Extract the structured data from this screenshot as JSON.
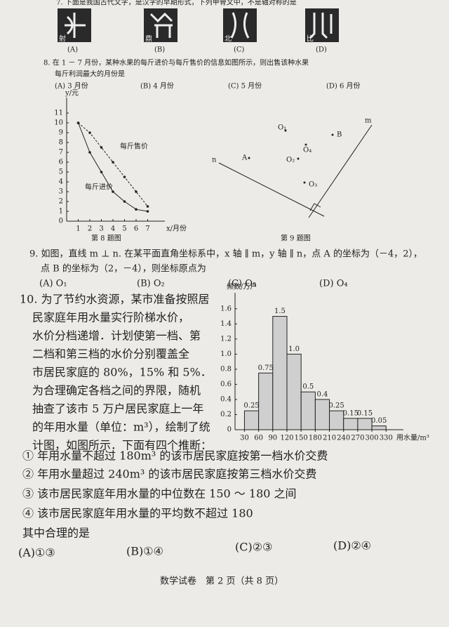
{
  "question7": {
    "text": "7. 下面是我国古代文字，是汉字的早期形式，下列甲骨文中，不是轴对称的是",
    "glyphs": [
      "射",
      "鼎",
      "北",
      "比"
    ],
    "options": [
      "(A)",
      "(B)",
      "(C)",
      "(D)"
    ]
  },
  "question8": {
    "lines": [
      "8. 在 1 － 7 月份，某种水果的每斤进价与每斤售价的信息如图所示，则出售该种水果",
      "每斤利润最大的月份是"
    ],
    "options": [
      "(A) 3 月份",
      "(B) 4 月份",
      "(C) 5 月份",
      "(D) 6 月份"
    ],
    "chart": {
      "type": "line",
      "y_label": "y/元",
      "x_label": "x/月份",
      "caption": "第 8 题图",
      "x": [
        1,
        2,
        3,
        4,
        5,
        6,
        7
      ],
      "xlim": [
        0,
        8
      ],
      "xticks": [
        1,
        2,
        3,
        4,
        5,
        6,
        7
      ],
      "ylim": [
        0,
        12
      ],
      "yticks": [
        0,
        1,
        2,
        3,
        4,
        5,
        6,
        7,
        8,
        9,
        10,
        11
      ],
      "series": [
        {
          "name": "每斤售价",
          "dashed": true,
          "values": [
            10,
            9,
            7.5,
            6,
            4.5,
            3,
            1.5
          ]
        },
        {
          "name": "每斤进价",
          "dashed": false,
          "values": [
            10,
            7,
            5,
            3,
            2,
            1.2,
            1
          ]
        }
      ]
    }
  },
  "question9": {
    "figure": {
      "labels": [
        "O₁",
        "B",
        "O₄",
        "A",
        "O₂",
        "O₃",
        "m",
        "n"
      ],
      "caption": "第 9 题图"
    },
    "lines": [
      "9. 如图，直线 m ⊥ n. 在某平面直角坐标系中，x 轴 ∥ m，y 轴 ∥ n，点 A 的坐标为（－4，2），",
      "点 B 的坐标为（2，－4），则坐标原点为"
    ],
    "options": [
      "(A) O₁",
      "(B) O₂",
      "(C) O₃",
      "(D) O₄"
    ]
  },
  "question10": {
    "lines": [
      "10. 为了节约水资源，某市准备按照居",
      "民家庭年用水量实行阶梯水价，",
      "水价分档递增．计划使第一档、第",
      "二档和第三档的水价分别覆盖全",
      "市居民家庭的 80%，15% 和 5%．",
      "为合理确定各档之间的界限，随机",
      "抽查了该市 5 万户居民家庭上一年",
      "的年用水量（单位：m³），绘制了统",
      "计图，如图所示．下面有四个推断："
    ],
    "chart": {
      "type": "histogram",
      "y_label": "频数/万户",
      "x_label": "用水量/m³",
      "bins": [
        30,
        60,
        90,
        120,
        150,
        180,
        210,
        240,
        270,
        300,
        330
      ],
      "values": [
        0.25,
        0.75,
        1.5,
        1,
        0.5,
        0.4,
        0.25,
        0.15,
        0.15,
        0.05
      ],
      "value_labels": [
        "0.25",
        "0.75",
        "1.5",
        "1.0",
        "0.5",
        "0.4",
        "0.25",
        "0.15",
        "0.15",
        "0.05"
      ],
      "xlim": [
        10,
        340
      ],
      "xticks": [
        30,
        60,
        90,
        120,
        150,
        180,
        210,
        240,
        270,
        300,
        330
      ],
      "ylim": [
        0,
        1.7
      ],
      "yticks": [
        0,
        0.2,
        0.4,
        0.6,
        0.8,
        {
          "value": 1,
          "label": "1.0"
        },
        1.2,
        1.4,
        1.6
      ]
    },
    "statements": [
      "① 年用水量不超过 180m³ 的该市居民家庭按第一档水价交费",
      "② 年用水量超过 240m³ 的该市居民家庭按第三档水价交费",
      "③ 该市居民家庭年用水量的中位数在 150 ～ 180 之间",
      "④ 该市居民家庭年用水量的平均数不超过 180"
    ],
    "prompt": "其中合理的是",
    "options": [
      "(A)①③",
      "(B)①④",
      "(C)②③",
      "(D)②④"
    ]
  },
  "footer": "数学试卷　第 2 页（共 8 页）"
}
